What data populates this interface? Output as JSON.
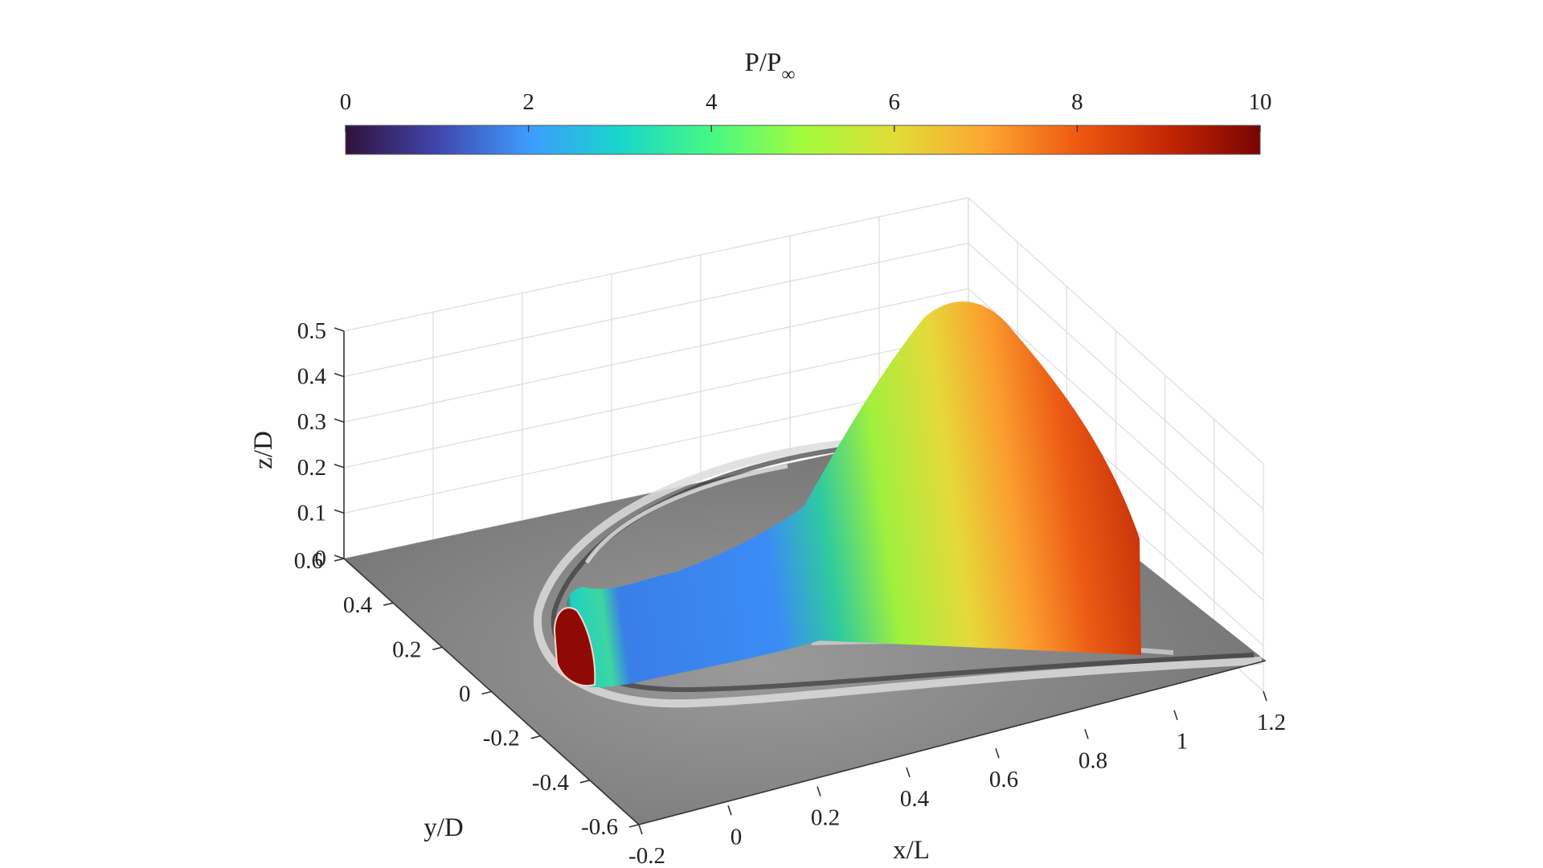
{
  "chart_data": {
    "type": "surface3d",
    "colorbar": {
      "label_main": "P/P",
      "label_sub": "∞",
      "range": [
        0,
        10
      ],
      "ticks": [
        "0",
        "2",
        "4",
        "6",
        "8",
        "10"
      ],
      "colormap": "turbo",
      "placement": "top"
    },
    "axes": {
      "x": {
        "label": "x/L",
        "range": [
          -0.2,
          1.2
        ],
        "ticks": [
          "-0.2",
          "0",
          "0.2",
          "0.4",
          "0.6",
          "0.8",
          "1",
          "1.2"
        ]
      },
      "y": {
        "label": "y/D",
        "range": [
          -0.6,
          0.6
        ],
        "ticks": [
          "-0.6",
          "-0.4",
          "-0.2",
          "0",
          "0.2",
          "0.4",
          "0.6"
        ]
      },
      "z": {
        "label": "z/D",
        "range": [
          0,
          0.5
        ],
        "ticks": [
          "0",
          "0.1",
          "0.2",
          "0.3",
          "0.4",
          "0.5"
        ]
      }
    },
    "grid": true,
    "surface_pressure": {
      "description_levels": [
        {
          "x": 0.0,
          "p": 10
        },
        {
          "x": 0.05,
          "p": 4
        },
        {
          "x": 0.15,
          "p": 2.5
        },
        {
          "x": 0.35,
          "p": 2.5
        },
        {
          "x": 0.6,
          "p": 4.5
        },
        {
          "x": 0.85,
          "p": 7.5
        },
        {
          "x": 1.0,
          "p": 8.8
        }
      ]
    },
    "ground_plane": "schlieren-grayscale"
  }
}
